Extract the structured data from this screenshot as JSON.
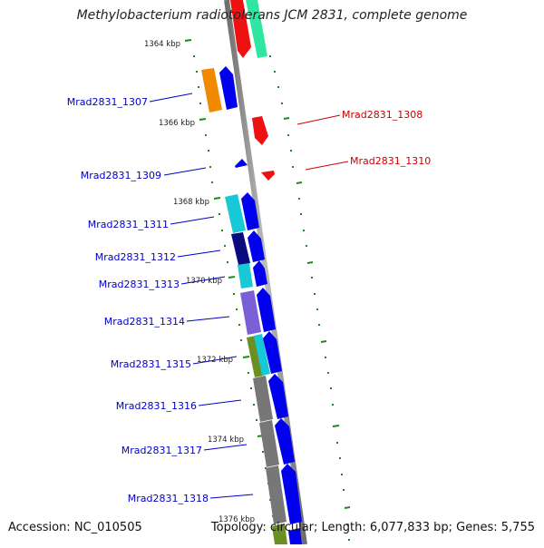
{
  "title": "Methylobacterium radiotolerans JCM 2831, complete genome",
  "footer": {
    "accession": "Accession: NC_010505",
    "topology": "Topology: circular; Length: 6,077,833 bp; Genes: 5,755"
  },
  "scale_labels": [
    "1364 kbp",
    "1366 kbp",
    "1368 kbp",
    "1370 kbp",
    "1372 kbp",
    "1374 kbp",
    "1376 kbp"
  ],
  "gene_labels_left": [
    "Mrad2831_1307",
    "Mrad2831_1309",
    "Mrad2831_1311",
    "Mrad2831_1312",
    "Mrad2831_1313",
    "Mrad2831_1314",
    "Mrad2831_1315",
    "Mrad2831_1316",
    "Mrad2831_1317",
    "Mrad2831_1318"
  ],
  "gene_labels_right": [
    "Mrad2831_1308",
    "Mrad2831_1310"
  ],
  "colors": {
    "forward_label": "#0000cc",
    "reverse_label": "#cc0000",
    "backbone": "#8c8c8c",
    "tick": "#1a8a1a"
  }
}
